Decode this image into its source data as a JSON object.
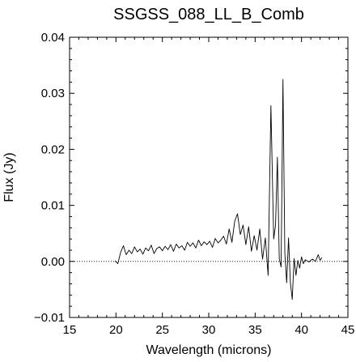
{
  "chart_data": {
    "type": "line",
    "title": "SSGSS_088_LL_B_Comb",
    "xlabel": "Wavelength (microns)",
    "ylabel": "Flux (Jy)",
    "xlim": [
      15,
      45
    ],
    "ylim": [
      -0.01,
      0.04
    ],
    "xticks": [
      15,
      20,
      25,
      30,
      35,
      40,
      45
    ],
    "xtick_labels": [
      "15",
      "20",
      "25",
      "30",
      "35",
      "40",
      "45"
    ],
    "yticks": [
      -0.01,
      0.0,
      0.01,
      0.02,
      0.03,
      0.04
    ],
    "ytick_labels": [
      "−0.01",
      "0.00",
      "0.01",
      "0.02",
      "0.03",
      "0.04"
    ],
    "zero_line": true,
    "grid": false,
    "series": [
      {
        "x": [
          19.9,
          20.2,
          20.5,
          20.8,
          21.1,
          21.4,
          21.7,
          22.0,
          22.3,
          22.6,
          22.9,
          23.2,
          23.5,
          23.8,
          24.1,
          24.4,
          24.7,
          25.0,
          25.3,
          25.6,
          25.9,
          26.2,
          26.5,
          26.8,
          27.1,
          27.4,
          27.7,
          28.0,
          28.3,
          28.6,
          28.9,
          29.2,
          29.5,
          29.8,
          30.1,
          30.4,
          30.7,
          31.0,
          31.3,
          31.6,
          31.9,
          32.2,
          32.5,
          32.8,
          33.1,
          33.4,
          33.7,
          34.0,
          34.3,
          34.6,
          34.9,
          35.2,
          35.5,
          35.8,
          36.1,
          36.4,
          36.7,
          37.0,
          37.2,
          37.4,
          37.6,
          37.8,
          38.0,
          38.2,
          38.4,
          38.6,
          38.8,
          39.0,
          39.2,
          39.4,
          39.6,
          39.8,
          40.0,
          40.2,
          40.4,
          40.6,
          40.8,
          41.0,
          41.2,
          41.5,
          41.8,
          42.0,
          42.2
        ],
        "y": [
          0.0001,
          -0.0004,
          0.0016,
          0.0028,
          0.0012,
          0.002,
          0.0014,
          0.0026,
          0.0017,
          0.0022,
          0.0013,
          0.0024,
          0.0019,
          0.0029,
          0.0014,
          0.0023,
          0.0026,
          0.0019,
          0.0027,
          0.0021,
          0.003,
          0.0018,
          0.0031,
          0.0024,
          0.0028,
          0.002,
          0.0034,
          0.0027,
          0.0033,
          0.0024,
          0.0038,
          0.0028,
          0.0035,
          0.003,
          0.0036,
          0.0025,
          0.0041,
          0.0033,
          0.0038,
          0.0045,
          0.0031,
          0.0058,
          0.0034,
          0.0072,
          0.0085,
          0.0048,
          0.0065,
          0.003,
          0.0062,
          0.0018,
          0.0046,
          0.002,
          0.0058,
          0.0004,
          0.0042,
          -0.0025,
          0.0278,
          0.004,
          0.0065,
          0.0186,
          0.0005,
          -0.001,
          0.0325,
          0.0015,
          -0.0038,
          0.0042,
          -0.0038,
          -0.0068,
          0.0005,
          -0.0025,
          0.0002,
          -0.0012,
          0.0008,
          -0.0004,
          0.0003,
          0.0001,
          -0.0001,
          0.0002,
          0.0004,
          0.0,
          0.0012,
          0.0002,
          0.0007
        ]
      }
    ]
  }
}
